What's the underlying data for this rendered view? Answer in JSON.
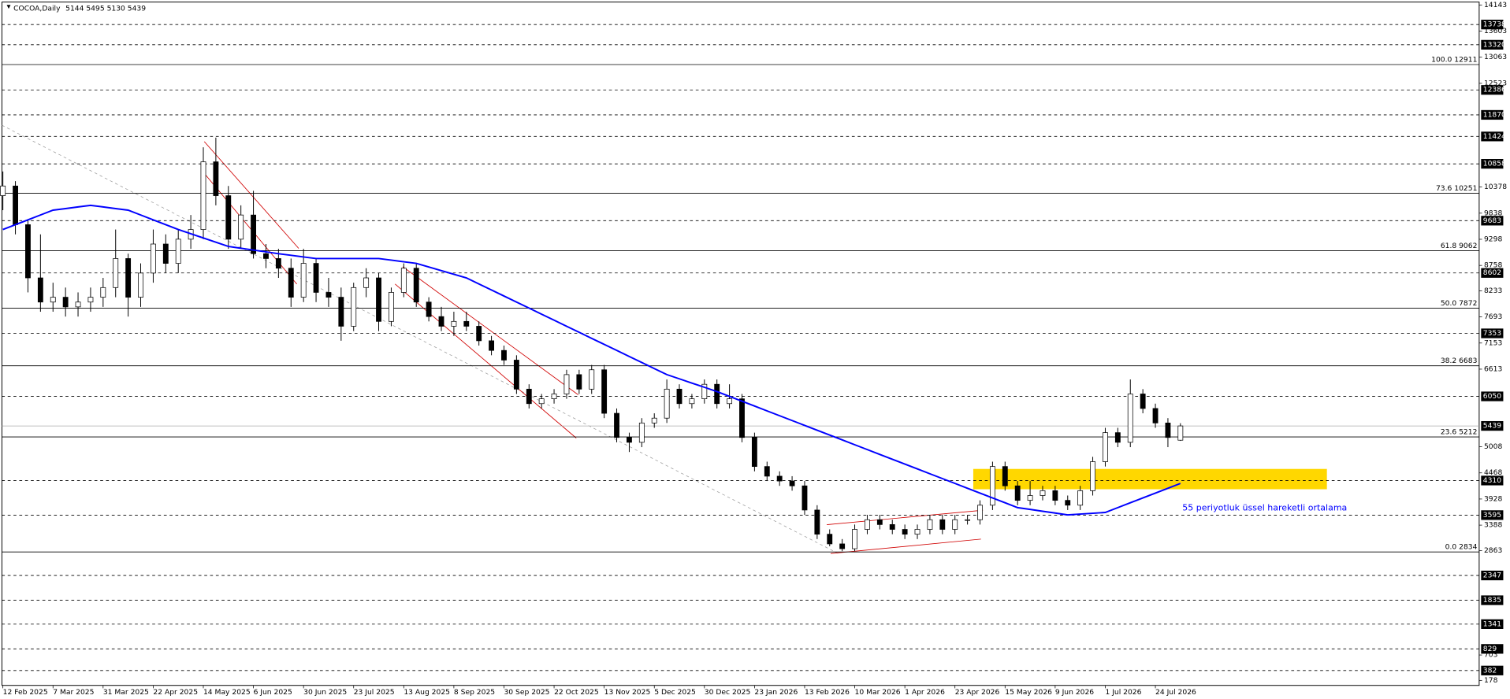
{
  "chart_data": {
    "type": "candlestick",
    "title": "COCOA,Daily",
    "header": "5144 5495 5130 5439",
    "categories": [
      "12 Feb 2025",
      null,
      null,
      null,
      "7 Mar 2025",
      null,
      null,
      null,
      "31 Mar 2025",
      null,
      null,
      null,
      "22 Apr 2025",
      null,
      null,
      null,
      "14 May 2025",
      null,
      null,
      null,
      "6 Jun 2025",
      null,
      null,
      null,
      "30 Jun 2025",
      null,
      null,
      null,
      "23 Jul 2025",
      null,
      null,
      null,
      "13 Aug 2025",
      null,
      null,
      null,
      "8 Sep 2025",
      null,
      null,
      null,
      "30 Sep 2025",
      null,
      null,
      null,
      "22 Oct 2025",
      null,
      null,
      null,
      "13 Nov 2025",
      null,
      null,
      null,
      "5 Dec 2025",
      null,
      null,
      null,
      "30 Dec 2025",
      null,
      null,
      null,
      "23 Jan 2026",
      null,
      null,
      null,
      "13 Feb 2026",
      null,
      null,
      null,
      "10 Mar 2026",
      null,
      null,
      null,
      "1 Apr 2026",
      null,
      null,
      null,
      "23 Apr 2026",
      null,
      null,
      null,
      "15 May 2026",
      null,
      null,
      null,
      "9 Jun 2026",
      null,
      null,
      null,
      "1 Jul 2026",
      null,
      null,
      null,
      "24 Jul 2026",
      null,
      null
    ],
    "ohlc": [
      [
        10200,
        10700,
        9900,
        10400
      ],
      [
        10400,
        10500,
        9400,
        9600
      ],
      [
        9600,
        9700,
        8200,
        8500
      ],
      [
        8500,
        9400,
        7800,
        8000
      ],
      [
        8000,
        8400,
        7800,
        8100
      ],
      [
        8100,
        8300,
        7700,
        7900
      ],
      [
        7900,
        8200,
        7700,
        8000
      ],
      [
        8000,
        8300,
        7800,
        8100
      ],
      [
        8100,
        8500,
        7900,
        8300
      ],
      [
        8300,
        9500,
        8100,
        8900
      ],
      [
        8900,
        9000,
        7700,
        8100
      ],
      [
        8100,
        8800,
        7900,
        8600
      ],
      [
        8600,
        9500,
        8400,
        9200
      ],
      [
        9200,
        9400,
        8600,
        8800
      ],
      [
        8800,
        9500,
        8600,
        9300
      ],
      [
        9300,
        9800,
        9100,
        9500
      ],
      [
        9500,
        11200,
        9300,
        10900
      ],
      [
        10900,
        11400,
        10000,
        10200
      ],
      [
        10200,
        10400,
        9100,
        9300
      ],
      [
        9300,
        10000,
        9100,
        9800
      ],
      [
        9800,
        10300,
        8900,
        9000
      ],
      [
        9000,
        9200,
        8700,
        8900
      ],
      [
        8900,
        9100,
        8500,
        8700
      ],
      [
        8700,
        8900,
        7900,
        8100
      ],
      [
        8100,
        9100,
        8000,
        8800
      ],
      [
        8800,
        8900,
        8000,
        8200
      ],
      [
        8200,
        8500,
        7900,
        8100
      ],
      [
        8100,
        8300,
        7200,
        7500
      ],
      [
        7500,
        8400,
        7400,
        8300
      ],
      [
        8300,
        8700,
        8100,
        8500
      ],
      [
        8500,
        8600,
        7400,
        7600
      ],
      [
        7600,
        8300,
        7500,
        8200
      ],
      [
        8200,
        8800,
        8100,
        8700
      ],
      [
        8700,
        8800,
        7900,
        8000
      ],
      [
        8000,
        8100,
        7600,
        7700
      ],
      [
        7700,
        7900,
        7400,
        7500
      ],
      [
        7500,
        7800,
        7300,
        7600
      ],
      [
        7600,
        7800,
        7400,
        7500
      ],
      [
        7500,
        7600,
        7100,
        7200
      ],
      [
        7200,
        7300,
        6900,
        7000
      ],
      [
        7000,
        7100,
        6700,
        6800
      ],
      [
        6800,
        6900,
        6100,
        6200
      ],
      [
        6200,
        6300,
        5800,
        5900
      ],
      [
        5900,
        6100,
        5800,
        6000
      ],
      [
        6000,
        6200,
        5900,
        6100
      ],
      [
        6100,
        6600,
        6000,
        6500
      ],
      [
        6500,
        6600,
        6100,
        6200
      ],
      [
        6200,
        6700,
        6100,
        6600
      ],
      [
        6600,
        6700,
        5600,
        5700
      ],
      [
        5700,
        5800,
        5100,
        5200
      ],
      [
        5200,
        5300,
        4900,
        5100
      ],
      [
        5100,
        5600,
        5000,
        5500
      ],
      [
        5500,
        5700,
        5400,
        5600
      ],
      [
        5600,
        6400,
        5500,
        6200
      ],
      [
        6200,
        6300,
        5800,
        5900
      ],
      [
        5900,
        6100,
        5800,
        6000
      ],
      [
        6000,
        6400,
        5900,
        6300
      ],
      [
        6300,
        6400,
        5800,
        5900
      ],
      [
        5900,
        6300,
        5800,
        6000
      ],
      [
        6000,
        6100,
        5100,
        5200
      ],
      [
        5200,
        5300,
        4500,
        4600
      ],
      [
        4600,
        4700,
        4300,
        4400
      ],
      [
        4400,
        4500,
        4200,
        4300
      ],
      [
        4300,
        4400,
        4100,
        4200
      ],
      [
        4200,
        4300,
        3600,
        3700
      ],
      [
        3700,
        3800,
        3100,
        3200
      ],
      [
        3200,
        3300,
        2950,
        3000
      ],
      [
        3000,
        3100,
        2850,
        2900
      ],
      [
        2900,
        3400,
        2850,
        3300
      ],
      [
        3300,
        3600,
        3200,
        3500
      ],
      [
        3500,
        3600,
        3300,
        3400
      ],
      [
        3400,
        3500,
        3200,
        3300
      ],
      [
        3300,
        3400,
        3100,
        3200
      ],
      [
        3200,
        3400,
        3100,
        3300
      ],
      [
        3300,
        3600,
        3200,
        3500
      ],
      [
        3500,
        3600,
        3200,
        3300
      ],
      [
        3300,
        3600,
        3200,
        3500
      ],
      [
        3500,
        3600,
        3400,
        3500
      ],
      [
        3500,
        3900,
        3400,
        3800
      ],
      [
        3800,
        4700,
        3700,
        4600
      ],
      [
        4600,
        4700,
        4100,
        4200
      ],
      [
        4200,
        4300,
        3800,
        3900
      ],
      [
        3900,
        4300,
        3800,
        4000
      ],
      [
        4000,
        4200,
        3900,
        4100
      ],
      [
        4100,
        4200,
        3800,
        3900
      ],
      [
        3900,
        4000,
        3700,
        3800
      ],
      [
        3800,
        4200,
        3700,
        4100
      ],
      [
        4100,
        4800,
        4000,
        4700
      ],
      [
        4700,
        5400,
        4600,
        5300
      ],
      [
        5300,
        5400,
        5000,
        5100
      ],
      [
        5100,
        6400,
        5000,
        6100
      ],
      [
        6100,
        6200,
        5700,
        5800
      ],
      [
        5800,
        5900,
        5400,
        5500
      ],
      [
        5500,
        5600,
        5000,
        5200
      ],
      [
        5144,
        5495,
        5130,
        5439
      ]
    ],
    "up_color": "#ffffff",
    "down_color": "#000000",
    "series": [
      {
        "color": "#0000ff",
        "values": [
          9500,
          9600,
          9700,
          9800,
          9900,
          9933,
          9967,
          10000,
          9967,
          9933,
          9900,
          9800,
          9700,
          9600,
          9500,
          9413,
          9325,
          9238,
          9150,
          9113,
          9075,
          9038,
          9000,
          8967,
          8933,
          8900,
          8900,
          8900,
          8900,
          8900,
          8900,
          8867,
          8833,
          8800,
          8725,
          8650,
          8575,
          8500,
          8375,
          8250,
          8125,
          8000,
          7875,
          7750,
          7625,
          7500,
          7375,
          7250,
          7125,
          7000,
          6875,
          6750,
          6625,
          6500,
          6413,
          6325,
          6238,
          6150,
          6050,
          5950,
          5850,
          5750,
          5650,
          5550,
          5450,
          5350,
          5250,
          5150,
          5050,
          4950,
          4850,
          4750,
          4650,
          4550,
          4450,
          4350,
          4250,
          4150,
          4050,
          3950,
          3850,
          3750,
          3713,
          3675,
          3638,
          3600,
          3617,
          3633,
          3650,
          3750,
          3850,
          3950,
          4050,
          4150,
          4250
        ]
      }
    ],
    "annotation": "55 periyotluk üssel hareketli ortalama",
    "zone": {
      "range": [
        4130,
        4550
      ],
      "color": "#ffd700"
    },
    "ylim": [
      74,
      14243
    ],
    "yticks": [
      14143,
      13603,
      13063,
      12523,
      10378,
      9838,
      9298,
      8758,
      8233,
      7693,
      7153,
      6613,
      5008,
      4468,
      3928,
      3388,
      2863,
      703,
      178
    ],
    "levels": [
      13738,
      13320,
      12386,
      11870,
      11424,
      10858,
      9683,
      8602,
      7353,
      6050,
      4310,
      3595,
      2347,
      1835,
      1341,
      829,
      382
    ],
    "fibs": [
      {
        "value": 12911,
        "label": "100.0 12911"
      },
      {
        "value": 10251,
        "label": "73.6 10251"
      },
      {
        "value": 9062,
        "label": "61.8 9062"
      },
      {
        "value": 7872,
        "label": "50.0 7872"
      },
      {
        "value": 6683,
        "label": "38.2 6683"
      },
      {
        "value": 5212,
        "label": "23.6 5212"
      },
      {
        "value": 2834,
        "label": "0.0 2834"
      }
    ],
    "price_line": 5439
  }
}
